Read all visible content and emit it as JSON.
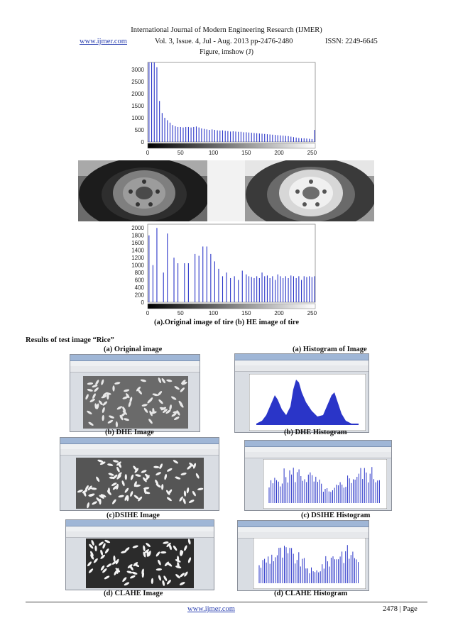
{
  "header": {
    "journal": "International Journal of Modern Engineering Research (IJMER)",
    "website": "www.ijmer.com",
    "volume": "Vol. 3, Issue. 4, Jul - Aug. 2013 pp-2476-2480",
    "issn": "ISSN: 2249-6645"
  },
  "figure_title": "Figure, imshow (J)",
  "tire_caption": "(a).Original image of tire (b) HE image of tire",
  "rice_section": {
    "heading": "Results of test image “Rice”",
    "labels": {
      "original_image": "(a) Original image",
      "histogram_of_image": "(a) Histogram of Image",
      "dhe_image": "(b) DHE Image",
      "dhe_histogram": "(b) DHE Histogram",
      "dsihe_image": "(c)DSIHE Image",
      "dsihe_histogram": "(c) DSIHE Histogram",
      "clahe_image": "(d) CLAHE Image",
      "clahe_histogram": "(d) CLAHE Histogram"
    }
  },
  "footer": {
    "website": "www.ijmer.com",
    "page": "2478 | Page"
  },
  "colors": {
    "bar": "#2a35c8",
    "link": "#2a3fb0"
  },
  "chart_data": [
    {
      "type": "bar",
      "x_ticks": [
        "0",
        "50",
        "100",
        "150",
        "200",
        "250"
      ],
      "y_ticks": [
        "0",
        "500",
        "1000",
        "1500",
        "2000",
        "2500",
        "3000"
      ],
      "xlim": [
        0,
        255
      ],
      "ylim": [
        0,
        3300
      ],
      "x": [
        2,
        6,
        10,
        14,
        18,
        22,
        26,
        30,
        34,
        38,
        42,
        46,
        50,
        54,
        58,
        62,
        66,
        70,
        74,
        78,
        82,
        86,
        90,
        94,
        98,
        102,
        106,
        110,
        114,
        118,
        122,
        126,
        130,
        134,
        138,
        142,
        146,
        150,
        154,
        158,
        162,
        166,
        170,
        174,
        178,
        182,
        186,
        190,
        194,
        198,
        202,
        206,
        210,
        214,
        218,
        222,
        226,
        230,
        234,
        238,
        242,
        246,
        250,
        254
      ],
      "values": [
        3300,
        3300,
        3300,
        3100,
        1700,
        1200,
        1000,
        900,
        800,
        700,
        650,
        620,
        620,
        600,
        620,
        620,
        600,
        620,
        640,
        600,
        560,
        540,
        520,
        500,
        520,
        500,
        480,
        470,
        480,
        460,
        450,
        430,
        440,
        430,
        420,
        420,
        400,
        400,
        390,
        380,
        370,
        360,
        350,
        340,
        330,
        320,
        310,
        300,
        290,
        280,
        270,
        260,
        250,
        240,
        220,
        200,
        180,
        160,
        150,
        150,
        140,
        130,
        120,
        500
      ]
    },
    {
      "type": "bar",
      "x_ticks": [
        "0",
        "50",
        "100",
        "150",
        "200",
        "250"
      ],
      "y_ticks": [
        "0",
        "200",
        "400",
        "600",
        "800",
        "1000",
        "1200",
        "1400",
        "1600",
        "1800",
        "2000"
      ],
      "xlim": [
        0,
        255
      ],
      "ylim": [
        0,
        2100
      ],
      "x": [
        2,
        8,
        14,
        24,
        30,
        40,
        46,
        56,
        62,
        72,
        78,
        84,
        90,
        96,
        102,
        108,
        114,
        120,
        126,
        132,
        138,
        144,
        150,
        154,
        158,
        162,
        166,
        170,
        174,
        178,
        182,
        186,
        190,
        194,
        198,
        202,
        206,
        210,
        214,
        218,
        222,
        226,
        230,
        234,
        238,
        242,
        246,
        250,
        254
      ],
      "values": [
        1800,
        1000,
        2000,
        800,
        1850,
        1200,
        1050,
        1050,
        1050,
        1300,
        1250,
        1500,
        1500,
        1300,
        1100,
        900,
        700,
        800,
        650,
        700,
        600,
        850,
        750,
        700,
        680,
        650,
        700,
        650,
        800,
        700,
        720,
        650,
        700,
        600,
        750,
        700,
        650,
        700,
        650,
        720,
        700,
        650,
        700,
        600,
        700,
        680,
        700,
        680,
        700
      ]
    }
  ]
}
